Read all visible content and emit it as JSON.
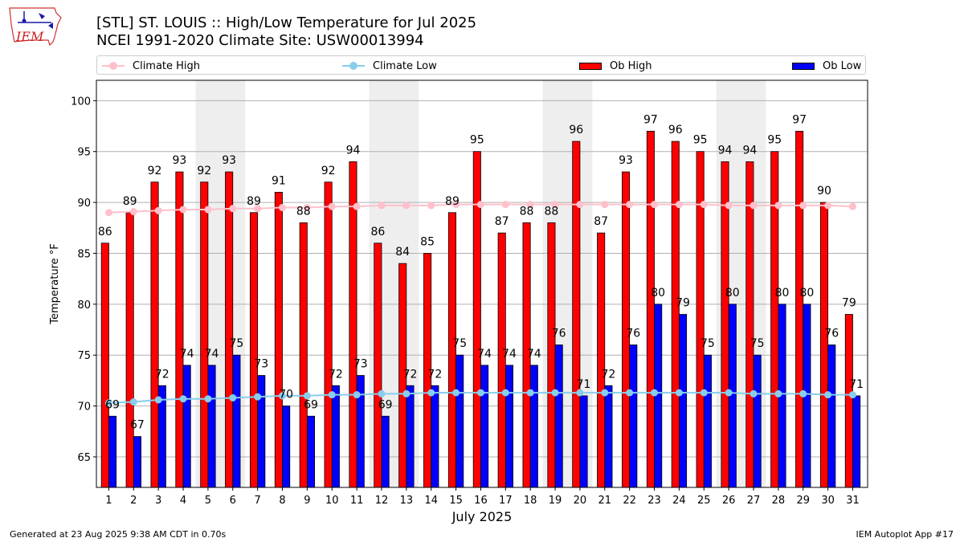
{
  "header": {
    "title_line1": "[STL] ST. LOUIS :: High/Low Temperature for Jul 2025",
    "title_line2": "NCEI 1991-2020 Climate Site: USW00013994",
    "logo_text": "IEM"
  },
  "footer": {
    "generated": "Generated at 23 Aug 2025 9:38 AM CDT in 0.70s",
    "app": "IEM Autoplot App #17"
  },
  "colors": {
    "ob_high": "#ff0000",
    "ob_low": "#0000ff",
    "climate_high": "#ffc0cb",
    "climate_low": "#87ceeb",
    "weekend_shade": "#eeeeee",
    "grid": "#b0b0b0"
  },
  "chart_data": {
    "type": "bar",
    "xlabel": "July 2025",
    "ylabel": "Temperature °F",
    "ylim": [
      62,
      102
    ],
    "yticks": [
      65,
      70,
      75,
      80,
      85,
      90,
      95,
      100
    ],
    "grid": "horizontal",
    "legend_position": "top",
    "categories": [
      "1",
      "2",
      "3",
      "4",
      "5",
      "6",
      "7",
      "8",
      "9",
      "10",
      "11",
      "12",
      "13",
      "14",
      "15",
      "16",
      "17",
      "18",
      "19",
      "20",
      "21",
      "22",
      "23",
      "24",
      "25",
      "26",
      "27",
      "28",
      "29",
      "30",
      "31"
    ],
    "shaded_days": [
      [
        5,
        6
      ],
      [
        12,
        13
      ],
      [
        19,
        20
      ],
      [
        26,
        27
      ]
    ],
    "series": [
      {
        "name": "Ob High",
        "kind": "bar",
        "values": [
          86,
          89,
          92,
          93,
          92,
          93,
          89,
          91,
          88,
          92,
          94,
          86,
          84,
          85,
          89,
          95,
          87,
          88,
          88,
          96,
          87,
          93,
          97,
          96,
          95,
          94,
          94,
          95,
          97,
          90,
          79
        ]
      },
      {
        "name": "Ob Low",
        "kind": "bar",
        "values": [
          69,
          67,
          72,
          74,
          74,
          75,
          73,
          70,
          69,
          72,
          73,
          69,
          72,
          72,
          75,
          74,
          74,
          74,
          76,
          71,
          72,
          76,
          80,
          79,
          75,
          80,
          75,
          80,
          80,
          76,
          71
        ]
      },
      {
        "name": "Climate High",
        "kind": "line",
        "values": [
          89.0,
          89.1,
          89.2,
          89.3,
          89.3,
          89.4,
          89.4,
          89.5,
          89.5,
          89.6,
          89.6,
          89.7,
          89.7,
          89.7,
          89.8,
          89.8,
          89.8,
          89.8,
          89.8,
          89.8,
          89.8,
          89.8,
          89.8,
          89.8,
          89.8,
          89.7,
          89.7,
          89.7,
          89.7,
          89.7,
          89.6
        ]
      },
      {
        "name": "Climate Low",
        "kind": "line",
        "values": [
          70.3,
          70.4,
          70.6,
          70.7,
          70.7,
          70.8,
          70.9,
          71.0,
          71.0,
          71.1,
          71.1,
          71.2,
          71.2,
          71.3,
          71.3,
          71.3,
          71.3,
          71.3,
          71.3,
          71.3,
          71.3,
          71.3,
          71.3,
          71.3,
          71.3,
          71.3,
          71.2,
          71.2,
          71.2,
          71.1,
          71.1
        ]
      }
    ]
  }
}
